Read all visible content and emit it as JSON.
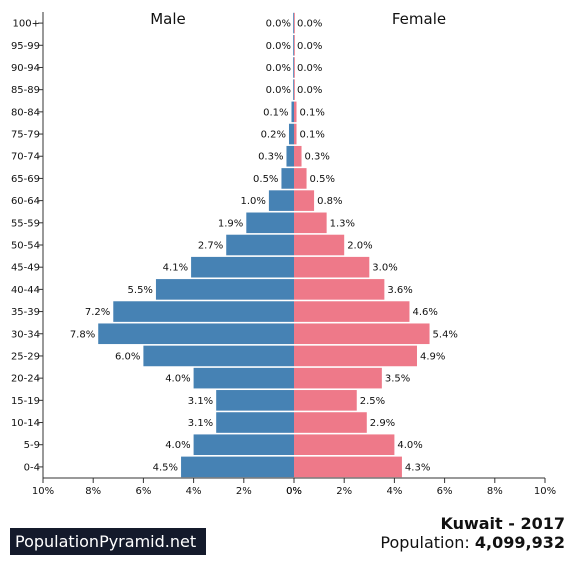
{
  "chart_data": {
    "type": "bar",
    "orientation": "horizontal-population-pyramid",
    "categories": [
      "100+",
      "95-99",
      "90-94",
      "85-89",
      "80-84",
      "75-79",
      "70-74",
      "65-69",
      "60-64",
      "55-59",
      "50-54",
      "45-49",
      "40-44",
      "35-39",
      "30-34",
      "25-29",
      "20-24",
      "15-19",
      "10-14",
      "5-9",
      "0-4"
    ],
    "series": [
      {
        "name": "Male",
        "color": "#4682b4",
        "values": [
          0.0,
          0.0,
          0.0,
          0.0,
          0.1,
          0.2,
          0.3,
          0.5,
          1.0,
          1.9,
          2.7,
          4.1,
          5.5,
          7.2,
          7.8,
          6.0,
          4.0,
          3.1,
          3.1,
          4.0,
          4.5
        ],
        "labels": [
          "0.0%",
          "0.0%",
          "0.0%",
          "0.0%",
          "0.1%",
          "0.2%",
          "0.3%",
          "0.5%",
          "1.0%",
          "1.9%",
          "2.7%",
          "4.1%",
          "5.5%",
          "7.2%",
          "7.8%",
          "6.0%",
          "4.0%",
          "3.1%",
          "3.1%",
          "4.0%",
          "4.5%"
        ]
      },
      {
        "name": "Female",
        "color": "#ee7989",
        "values": [
          0.0,
          0.0,
          0.0,
          0.0,
          0.1,
          0.1,
          0.3,
          0.5,
          0.8,
          1.3,
          2.0,
          3.0,
          3.6,
          4.6,
          5.4,
          4.9,
          3.5,
          2.5,
          2.9,
          4.0,
          4.3
        ],
        "labels": [
          "0.0%",
          "0.0%",
          "0.0%",
          "0.0%",
          "0.1%",
          "0.1%",
          "0.3%",
          "0.5%",
          "0.8%",
          "1.3%",
          "2.0%",
          "3.0%",
          "3.6%",
          "4.6%",
          "5.4%",
          "4.9%",
          "3.5%",
          "2.5%",
          "2.9%",
          "4.0%",
          "4.3%"
        ]
      }
    ],
    "xlim": [
      0,
      10
    ],
    "x_ticks_left": [
      "10%",
      "8%",
      "6%",
      "4%",
      "2%",
      "0%"
    ],
    "x_ticks_right": [
      "0%",
      "2%",
      "4%",
      "6%",
      "8%",
      "10%"
    ],
    "grid": false
  },
  "brand": "PopulationPyramid.net",
  "country_year": "Kuwait - 2017",
  "population_label": "Population:",
  "population_value": "4,099,932"
}
